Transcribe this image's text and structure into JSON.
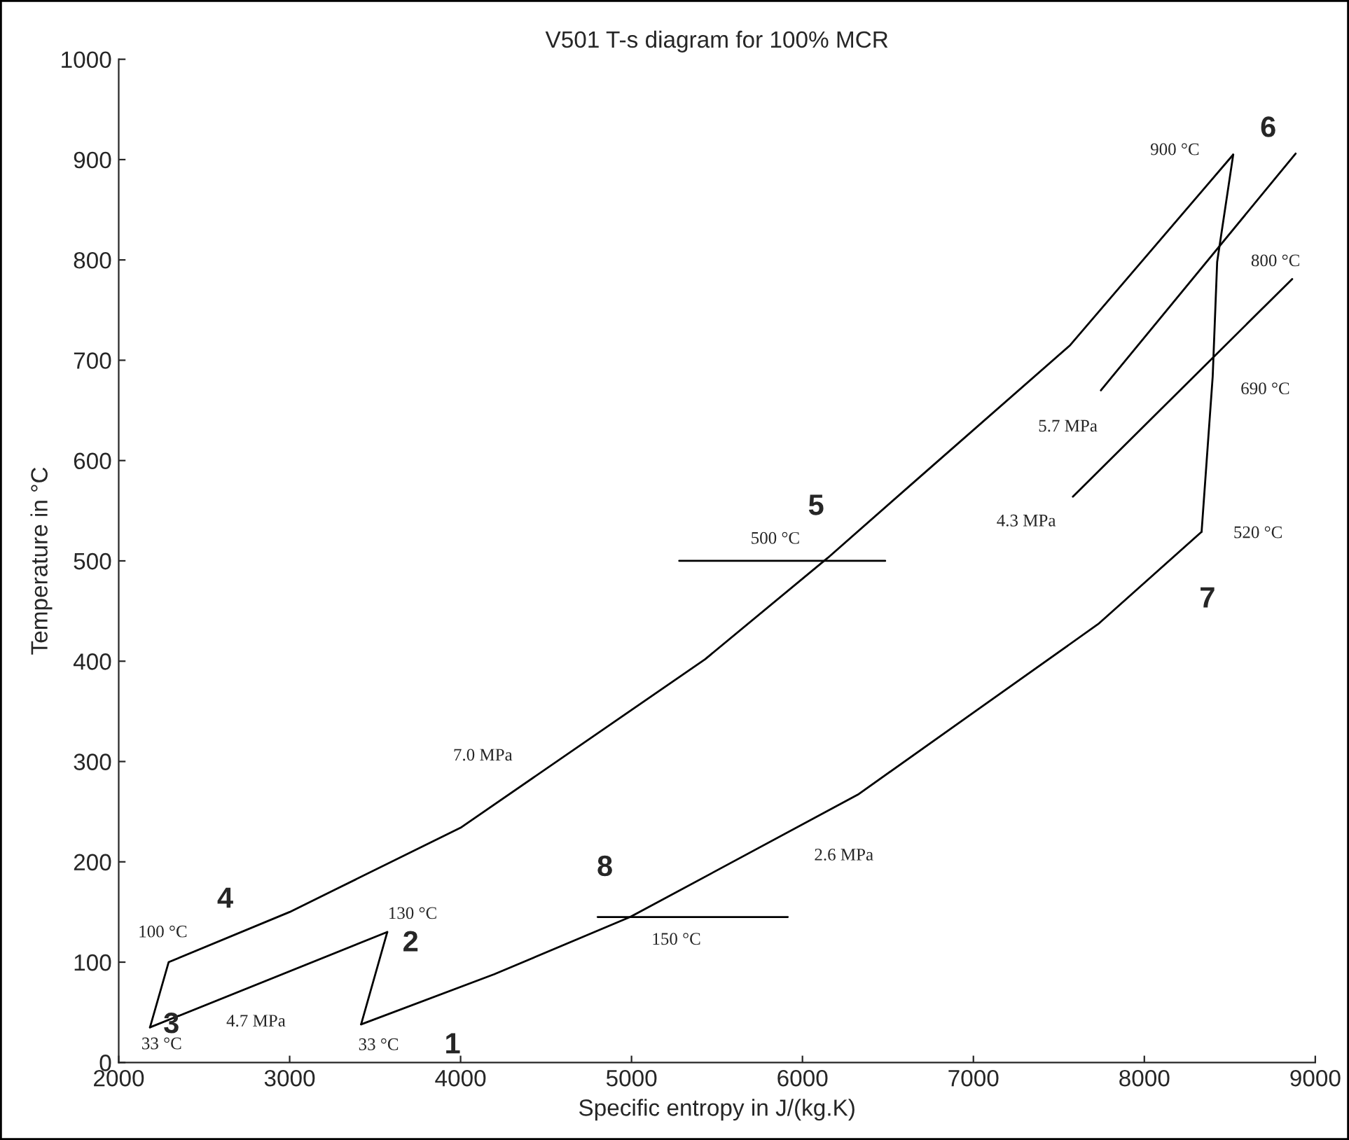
{
  "chart_data": {
    "type": "line",
    "title": "V501 T-s diagram for 100% MCR",
    "xlabel": "Specific entropy in J/(kg.K)",
    "ylabel": "Temperature in °C",
    "xlim": [
      2000,
      9000
    ],
    "xticks": [
      2000,
      3000,
      4000,
      5000,
      6000,
      7000,
      8000,
      9000
    ],
    "ylim": [
      0,
      1000
    ],
    "yticks": [
      0,
      100,
      200,
      300,
      400,
      500,
      600,
      700,
      800,
      900,
      1000
    ],
    "grid": false,
    "legend": false,
    "marker": "none",
    "line_style": "solid",
    "series": [
      {
        "color": "#000000",
        "x": [
          3418,
          3571
        ],
        "values": [
          38,
          130
        ]
      },
      {
        "color": "#000000",
        "x": [
          2183,
          3571
        ],
        "values": [
          35,
          130
        ]
      },
      {
        "color": "#000000",
        "x": [
          2183,
          2292,
          3000,
          4000,
          5431,
          6148,
          6689,
          7566,
          8520
        ],
        "values": [
          35,
          100,
          150,
          234,
          402,
          503,
          584,
          715,
          905
        ]
      },
      {
        "color": "#000000",
        "x": [
          8335,
          8400,
          8426,
          8520
        ],
        "values": [
          529,
          684,
          798,
          905
        ]
      },
      {
        "color": "#000000",
        "x": [
          3418,
          4197,
          4992,
          6324,
          7730,
          8335
        ],
        "values": [
          38,
          88,
          145,
          267,
          437,
          529
        ]
      },
      {
        "color": "#000000",
        "x": [
          7746,
          8885
        ],
        "values": [
          670,
          906
        ]
      },
      {
        "color": "#000000",
        "x": [
          7582,
          8865
        ],
        "values": [
          564,
          781
        ]
      },
      {
        "color": "#000000",
        "x": [
          5279,
          6484
        ],
        "values": [
          500,
          500
        ]
      },
      {
        "color": "#000000",
        "x": [
          4802,
          5914
        ],
        "values": [
          145,
          145
        ]
      }
    ],
    "annotations": [
      {
        "text": "1",
        "x": 3418,
        "y": 38
      },
      {
        "text": "2",
        "x": 3571,
        "y": 130
      },
      {
        "text": "3",
        "x": 2183,
        "y": 35
      },
      {
        "text": "4",
        "x": 2623,
        "y": 123
      },
      {
        "text": "5",
        "x": 6148,
        "y": 503
      },
      {
        "text": "6",
        "x": 8520,
        "y": 905
      },
      {
        "text": "7",
        "x": 8335,
        "y": 529
      },
      {
        "text": "8",
        "x": 4992,
        "y": 145
      },
      {
        "text": "33 °C",
        "x": 2183,
        "y": 35
      },
      {
        "text": "33 °C",
        "x": 3418,
        "y": 38
      },
      {
        "text": "130 °C",
        "x": 3571,
        "y": 130
      },
      {
        "text": "100 °C",
        "x": 2292,
        "y": 100
      },
      {
        "text": "4.7 MPa",
        "x": 2803,
        "y": 77
      },
      {
        "text": "150 °C",
        "x": 5262,
        "y": 145
      },
      {
        "text": "2.6 MPa",
        "x": 6242,
        "y": 260
      },
      {
        "text": "7.0 MPa",
        "x": 4130,
        "y": 249
      },
      {
        "text": "500 °C",
        "x": 5841,
        "y": 500
      },
      {
        "text": "520 °C",
        "x": 8335,
        "y": 529
      },
      {
        "text": "4.3 MPa",
        "x": 7582,
        "y": 564
      },
      {
        "text": "5.7 MPa",
        "x": 7746,
        "y": 670
      },
      {
        "text": "690 °C",
        "x": 8400,
        "y": 684
      },
      {
        "text": "800 °C",
        "x": 8426,
        "y": 798
      },
      {
        "text": "900 °C",
        "x": 8520,
        "y": 905
      }
    ]
  }
}
